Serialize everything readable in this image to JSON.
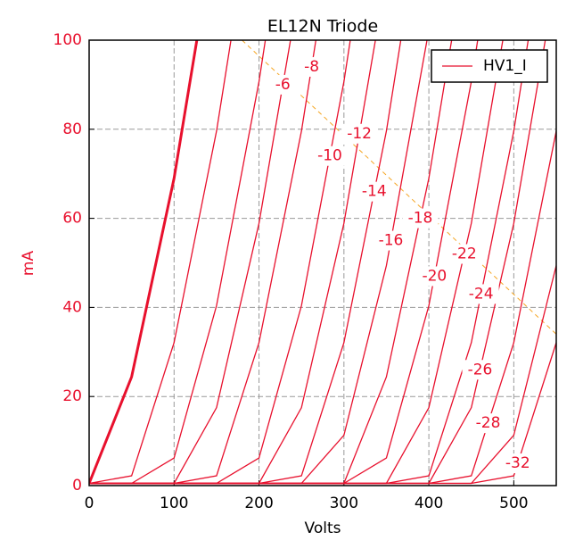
{
  "chart_data": {
    "type": "line",
    "title": "EL12N Triode",
    "xlabel": "Volts",
    "ylabel": "mA",
    "x": [
      0,
      50,
      100,
      150,
      200,
      250,
      300,
      350,
      400,
      450,
      500,
      550
    ],
    "xlim": [
      0,
      550
    ],
    "ylim": [
      0,
      100
    ],
    "xticks": [
      0,
      100,
      200,
      300,
      400,
      500
    ],
    "yticks": [
      0,
      20,
      40,
      60,
      80,
      100
    ],
    "grid": true,
    "legend": "upper right",
    "series": [
      {
        "name": "HV1_I",
        "color": "#e8102d",
        "curves": [
          {
            "values": [
              0.5,
              24.4,
              69,
              126.8,
              null,
              null,
              null,
              null,
              null,
              null,
              null,
              null
            ],
            "bold": true
          },
          {
            "values": [
              0.5,
              2.2,
              32.1,
              79.6,
              139.7,
              null,
              null,
              null,
              null,
              null,
              null,
              null
            ]
          },
          {
            "values": [
              0.5,
              0.5,
              6.2,
              40.4,
              90.7,
              152.9,
              null,
              null,
              null,
              null,
              null,
              null
            ]
          },
          {
            "values": [
              0.5,
              0.5,
              0.5,
              17.5,
              58.9,
              114.3,
              null,
              null,
              null,
              null,
              null,
              null
            ],
            "label": "-6"
          },
          {
            "values": [
              0.5,
              0.5,
              0.5,
              2.2,
              32.1,
              79.6,
              139.7,
              null,
              null,
              null,
              null,
              null
            ],
            "label": "-8"
          },
          {
            "values": [
              0.5,
              0.5,
              0.5,
              0.5,
              6.2,
              40.4,
              90.7,
              152.9,
              null,
              null,
              null,
              null
            ],
            "label": "-10"
          },
          {
            "values": [
              0.5,
              0.5,
              0.5,
              0.5,
              0.5,
              17.5,
              58.9,
              114.3,
              null,
              null,
              null,
              null
            ],
            "label": "-12"
          },
          {
            "values": [
              0.5,
              0.5,
              0.5,
              0.5,
              0.5,
              2.2,
              32.1,
              79.6,
              139.7,
              null,
              null,
              null
            ],
            "label": "-14"
          },
          {
            "values": [
              0.5,
              0.5,
              0.5,
              0.5,
              0.5,
              0.5,
              11.3,
              49.4,
              102.3,
              null,
              null,
              null
            ],
            "label": "-16"
          },
          {
            "values": [
              0.5,
              0.5,
              0.5,
              0.5,
              0.5,
              0.5,
              0.5,
              24.4,
              69,
              126.8,
              null,
              null
            ],
            "label": "-18"
          },
          {
            "values": [
              0.5,
              0.5,
              0.5,
              0.5,
              0.5,
              0.5,
              0.5,
              6.2,
              40.4,
              90.7,
              152.9,
              null
            ],
            "label": "-20"
          },
          {
            "values": [
              0.5,
              0.5,
              0.5,
              0.5,
              0.5,
              0.5,
              0.5,
              0.5,
              17.5,
              58.9,
              114.3,
              null
            ],
            "label": "-22"
          },
          {
            "values": [
              0.5,
              0.5,
              0.5,
              0.5,
              0.5,
              0.5,
              0.5,
              0.5,
              2.2,
              32.1,
              79.6,
              139.7
            ],
            "label": "-24"
          },
          {
            "values": [
              0.5,
              0.5,
              0.5,
              0.5,
              0.5,
              0.5,
              0.5,
              0.5,
              0.5,
              17.5,
              58.9,
              114.3
            ],
            "label": "-26"
          },
          {
            "values": [
              0.5,
              0.5,
              0.5,
              0.5,
              0.5,
              0.5,
              0.5,
              0.5,
              0.5,
              2.2,
              32.1,
              79.6
            ],
            "label": "-28"
          },
          {
            "values": [
              0.5,
              0.5,
              0.5,
              0.5,
              0.5,
              0.5,
              0.5,
              0.5,
              0.5,
              0.5,
              11.3,
              49.4
            ]
          },
          {
            "values": [
              0.5,
              0.5,
              0.5,
              0.5,
              0.5,
              0.5,
              0.5,
              0.5,
              0.5,
              0.5,
              2.2,
              32.1
            ],
            "label": "-32"
          }
        ]
      }
    ],
    "load_line": {
      "x": [
        180,
        550
      ],
      "values": [
        100,
        34
      ],
      "color": "#f5a623"
    }
  }
}
